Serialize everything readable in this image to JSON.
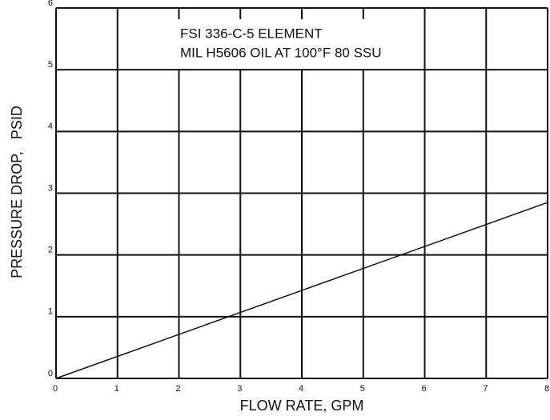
{
  "chart_data": {
    "type": "line",
    "annotations": [
      "FSI 336-C-5 ELEMENT",
      "MIL H5606 OIL AT 100°F 80 SSU"
    ],
    "x_label": "FLOW RATE, GPM",
    "y_label": "PRESSURE DROP,   PSID",
    "x": [
      0,
      8
    ],
    "series": [
      {
        "color": "#111111",
        "values": [
          0,
          2.85
        ]
      }
    ],
    "xlim": [
      0,
      8
    ],
    "xticks": [
      0,
      1,
      2,
      3,
      4,
      5,
      6,
      7,
      8
    ],
    "ylim": [
      0,
      6
    ],
    "yticks": [
      0,
      1,
      2,
      3,
      4,
      5,
      6
    ],
    "grid": true
  }
}
